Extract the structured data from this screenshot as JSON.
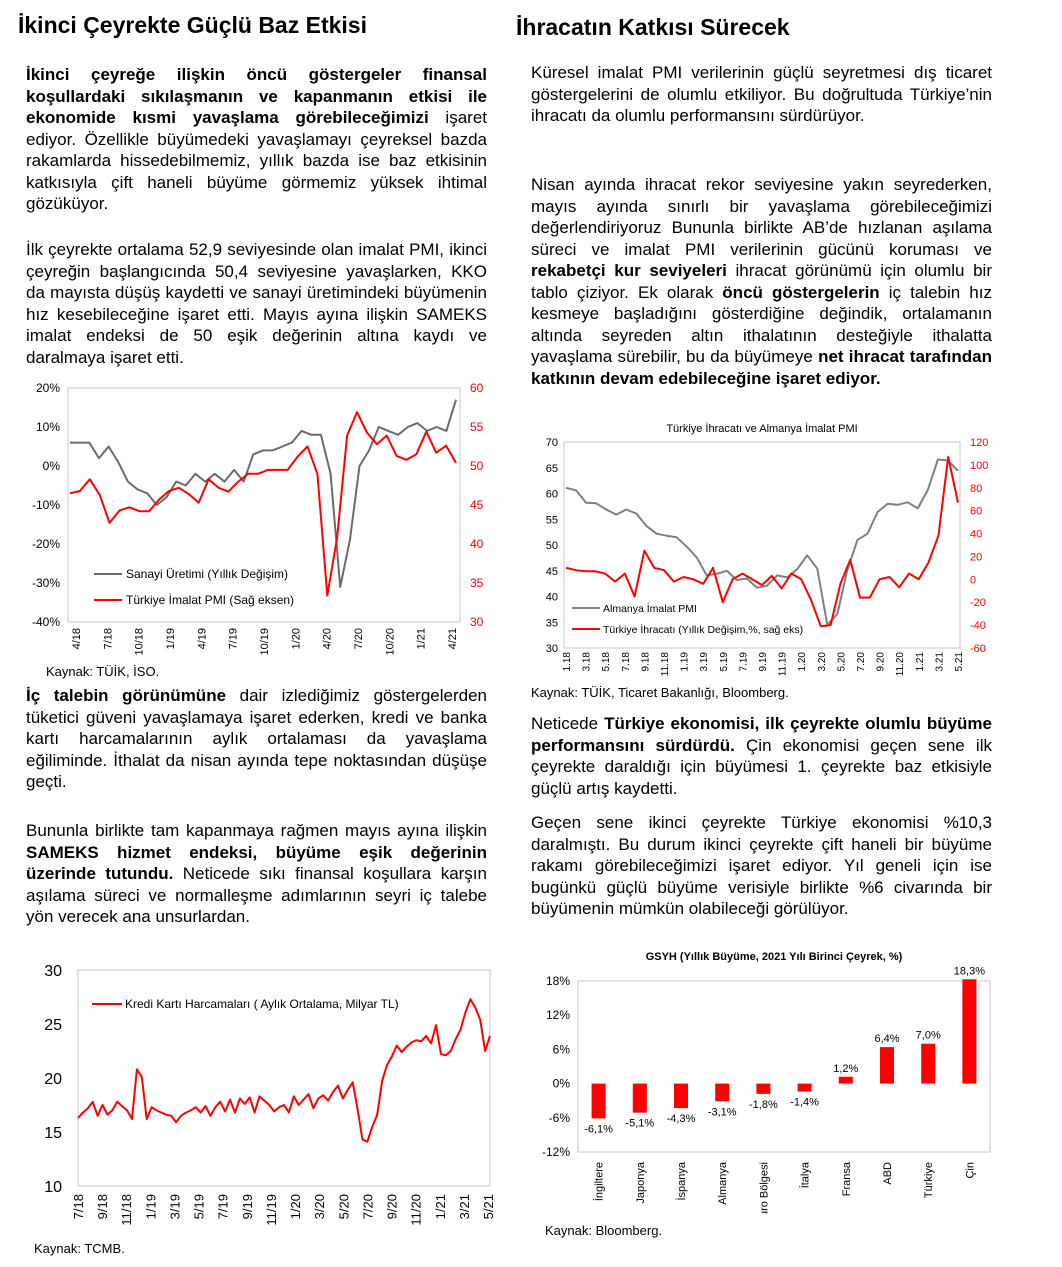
{
  "left": {
    "heading": "İkinci Çeyrekte Güçlü Baz Etkisi",
    "p1": [
      {
        "t": "İkinci çeyreğe ilişkin öncü göstergeler finansal koşullardaki sıkılaşmanın ve kapanmanın etkisi ile ekonomide kısmi yavaşlama görebileceğimizi",
        "b": true
      },
      {
        "t": " işaret ediyor. Özellikle büyümedeki yavaşlamayı çeyreksel bazda rakamlarda hissedebilmemiz, yıllık bazda ise baz etkisinin katkısıyla çift haneli büyüme görmemiz yüksek ihtimal gözüküyor.",
        "b": false
      }
    ],
    "p2": [
      {
        "t": "İlk çeyrekte ortalama 52,9 seviyesinde olan imalat PMI, ikinci çeyreğin başlangıcında 50,4 seviyesine yavaşlarken, KKO da mayısta düşüş kaydetti ve sanayi üretimindeki büyümenin hız kesebileceğine işaret etti. Mayıs ayına ilişkin SAMEKS imalat endeksi de 50 eşik değerinin altına kaydı ve daralmaya işaret etti.",
        "b": false
      }
    ],
    "p3": [
      {
        "t": "İç talebin görünümüne",
        "b": true
      },
      {
        "t": " dair izlediğimiz göstergelerden tüketici güveni yavaşlamaya işaret ederken, kredi ve banka kartı harcamalarının aylık ortalaması da yavaşlama eğiliminde. İthalat da nisan ayında tepe noktasından düşüşe geçti.",
        "b": false
      }
    ],
    "p4": [
      {
        "t": "Bununla birlikte tam kapanmaya rağmen mayıs ayına ilişkin ",
        "b": false
      },
      {
        "t": "SAMEKS hizmet endeksi, büyüme eşik değerinin üzerinde tutundu.",
        "b": true
      },
      {
        "t": " Neticede sıkı finansal koşullara karşın aşılama süreci ve normalleşme adımlarının seyri iç talebe yön verecek ana unsurlardan.",
        "b": false
      }
    ],
    "source1": "Kaynak: TÜİK, İSO.",
    "source2": "Kaynak: TCMB."
  },
  "right": {
    "heading": "İhracatın Katkısı Sürecek",
    "p1": [
      {
        "t": "Küresel imalat PMI verilerinin güçlü seyretmesi dış ticaret göstergelerini de olumlu etkiliyor. Bu doğrultuda Türkiye’nin ihracatı da olumlu performansını sürdürüyor.",
        "b": false
      }
    ],
    "p2": [
      {
        "t": "Nisan ayında ihracat rekor seviyesine yakın seyrederken, mayıs ayında sınırlı bir yavaşlama görebileceğimizi değerlendiriyoruz Bununla birlikte AB’de hızlanan aşılama süreci ve imalat PMI verilerinin gücünü koruması ve ",
        "b": false
      },
      {
        "t": "rekabetçi kur seviyeleri",
        "b": true
      },
      {
        "t": " ihracat görünümü için olumlu bir tablo çiziyor. Ek olarak ",
        "b": false
      },
      {
        "t": "öncü göstergelerin",
        "b": true
      },
      {
        "t": " iç talebin hız kesmeye başladığını gösterdiğine değindik, ortalamanın altında seyreden altın ithalatının desteğiyle ithalatta yavaşlama sürebilir, bu da büyümeye ",
        "b": false
      },
      {
        "t": "net ihracat tarafından katkının devam edebileceğine işaret ediyor.",
        "b": true
      }
    ],
    "p3": [
      {
        "t": "Neticede ",
        "b": false
      },
      {
        "t": "Türkiye ekonomisi, ilk çeyrekte olumlu büyüme performansını sürdürdü.",
        "b": true
      },
      {
        "t": " Çin ekonomisi geçen sene ilk çeyrekte daraldığı için büyümesi 1. çeyrekte baz etkisiyle güçlü artış kaydetti.",
        "b": false
      }
    ],
    "p4": [
      {
        "t": "Geçen sene ikinci çeyrekte Türkiye ekonomisi %10,3 daralmıştı. Bu durum ikinci çeyrekte çift haneli bir büyüme rakamı görebileceğimizi işaret ediyor. Yıl geneli için ise bugünkü güçlü büyüme verisiyle birlikte %6 civarında bir büyümenin mümkün olabileceği görülüyor.",
        "b": false
      }
    ],
    "source1": "Kaynak: TÜİK, Ticaret Bakanlığı, Bloomberg.",
    "source2": "Kaynak: Bloomberg."
  },
  "chart_data": [
    {
      "type": "line",
      "title": "",
      "x_ticks": [
        "4/18",
        "7/18",
        "10/18",
        "1/19",
        "4/19",
        "7/19",
        "10/19",
        "1/20",
        "4/20",
        "7/20",
        "10/20",
        "1/21",
        "4/21"
      ],
      "ylim_left": [
        -40,
        20
      ],
      "yticks_left": [
        "20%",
        "10%",
        "0%",
        "-10%",
        "-20%",
        "-30%",
        "-40%"
      ],
      "ylim_right": [
        30,
        60
      ],
      "yticks_right": [
        "60",
        "55",
        "50",
        "45",
        "40",
        "35",
        "30"
      ],
      "legend_placement": "bottom-left",
      "series": [
        {
          "name": "Sanayi Üretimi (Yıllık Değişim)",
          "axis": "left",
          "color": "#6b6b6b",
          "values": [
            6,
            6,
            6,
            2,
            5,
            1,
            -4,
            -6,
            -7,
            -10,
            -8,
            -4,
            -5,
            -2,
            -4,
            -2,
            -4,
            -1,
            -4,
            3,
            4,
            4,
            5,
            6,
            9,
            8,
            8,
            -2,
            -31,
            -19,
            0,
            4,
            10,
            9,
            8,
            10,
            11,
            9,
            10,
            9,
            17
          ]
        },
        {
          "name": "Türkiye İmalat PMI (Sağ eksen)",
          "axis": "right",
          "color": "#ff0000",
          "values": [
            46.5,
            46.8,
            48.3,
            46.3,
            42.7,
            44.3,
            44.7,
            44.2,
            44.2,
            45.7,
            46.8,
            47.2,
            46.4,
            45.3,
            48.3,
            47.2,
            46.7,
            48.0,
            49.0,
            49.0,
            49.5,
            49.5,
            49.5,
            51.2,
            52.5,
            49.0,
            33.4,
            40.9,
            53.9,
            56.9,
            54.3,
            52.8,
            53.9,
            51.3,
            50.8,
            51.5,
            54.4,
            51.7,
            52.6,
            50.4
          ]
        }
      ]
    },
    {
      "type": "line",
      "title": "Türkiye İhracatı ve Almanya İmalat PMI",
      "x_ticks": [
        "1.18",
        "3.18",
        "5.18",
        "7.18",
        "9.18",
        "11.18",
        "1.19",
        "3.19",
        "5.19",
        "7.19",
        "9.19",
        "11.19",
        "1.20",
        "3.20",
        "5.20",
        "7.20",
        "9.20",
        "11.20",
        "1.21",
        "3.21",
        "5.21"
      ],
      "ylim_left": [
        30,
        70
      ],
      "yticks_left": [
        "70",
        "65",
        "60",
        "55",
        "50",
        "45",
        "40",
        "35",
        "30"
      ],
      "ylim_right": [
        -60,
        120
      ],
      "yticks_right": [
        "120",
        "100",
        "80",
        "60",
        "40",
        "20",
        "0",
        "-20",
        "-40",
        "-60"
      ],
      "legend_placement": "bottom-left",
      "series": [
        {
          "name": "Almanya İmalat PMI",
          "axis": "left",
          "color": "#808080",
          "values": [
            61.1,
            60.6,
            58.2,
            58.1,
            56.9,
            55.9,
            56.9,
            56.1,
            53.7,
            52.2,
            51.8,
            51.5,
            49.7,
            47.6,
            44.1,
            44.4,
            45.0,
            43.2,
            43.5,
            41.7,
            42.1,
            44.1,
            43.7,
            45.3,
            48.0,
            45.4,
            34.5,
            36.6,
            45.2,
            51.0,
            52.2,
            56.4,
            58.0,
            57.8,
            58.3,
            57.1,
            60.7,
            66.6,
            66.4,
            64.4
          ]
        },
        {
          "name": "Türkiye İhracatı (Yıllık Değişim,%, sağ eks)",
          "axis": "right",
          "color": "#ff0000",
          "values": [
            10,
            8,
            7,
            7,
            5,
            -2,
            5,
            -15,
            25,
            10,
            8,
            -2,
            2,
            0,
            -4,
            10,
            -20,
            0,
            5,
            0,
            -5,
            3,
            -8,
            5,
            0,
            -18,
            -41,
            -40,
            -4,
            17,
            -16,
            -16,
            0,
            2,
            -7,
            5,
            0,
            15,
            38,
            107,
            67
          ]
        }
      ]
    },
    {
      "type": "line",
      "title": "",
      "x_ticks": [
        "7/18",
        "9/18",
        "11/18",
        "1/19",
        "3/19",
        "5/19",
        "7/19",
        "9/19",
        "11/19",
        "1/20",
        "3/20",
        "5/20",
        "7/20",
        "9/20",
        "11/20",
        "1/21",
        "3/21",
        "5/21"
      ],
      "ylim": [
        10,
        30
      ],
      "yticks": [
        "30",
        "25",
        "20",
        "15",
        "10"
      ],
      "legend_placement": "top-left",
      "series": [
        {
          "name": "Kredi Kartı Harcamaları ( Aylık Ortalama, Milyar TL)",
          "color": "#ff0000",
          "values": [
            16.3,
            16.8,
            17.2,
            17.8,
            16.5,
            17.5,
            16.6,
            17.0,
            17.8,
            17.4,
            17.0,
            16.2,
            20.8,
            20.1,
            16.2,
            17.3,
            17.0,
            16.8,
            16.6,
            16.5,
            15.9,
            16.5,
            16.8,
            17.0,
            17.3,
            16.8,
            17.4,
            16.5,
            17.3,
            17.8,
            16.9,
            18.0,
            16.8,
            18.1,
            17.6,
            18.2,
            16.8,
            18.3,
            17.9,
            17.5,
            16.9,
            17.3,
            17.5,
            16.8,
            18.3,
            17.5,
            18.0,
            18.5,
            17.2,
            18.1,
            18.4,
            17.9,
            18.7,
            19.3,
            18.1,
            18.9,
            19.6,
            17.1,
            14.3,
            14.1,
            15.5,
            16.6,
            19.7,
            21.2,
            22.0,
            23.0,
            22.4,
            22.9,
            23.3,
            23.5,
            23.4,
            23.9,
            23.2,
            24.9,
            22.2,
            22.1,
            22.5,
            23.6,
            24.5,
            26.1,
            27.3,
            26.5,
            25.4,
            22.5,
            23.9
          ]
        }
      ]
    },
    {
      "type": "bar",
      "title": "GSYH (Yıllık Büyüme, 2021 Yılı Birinci Çeyrek, %)",
      "categories": [
        "İngiltere",
        "Japonya",
        "İspanya",
        "Almanya",
        "Euro Bölgesi",
        "İtalya",
        "Fransa",
        "ABD",
        "Türkiye",
        "Çin"
      ],
      "values": [
        -6.1,
        -5.1,
        -4.3,
        -3.1,
        -1.8,
        -1.4,
        1.2,
        6.4,
        7.0,
        18.3
      ],
      "data_labels": [
        "-6,1%",
        "-5,1%",
        "-4,3%",
        "-3,1%",
        "-1,8%",
        "-1,4%",
        "1,2%",
        "6,4%",
        "7,0%",
        "18,3%"
      ],
      "ylim": [
        -12,
        18
      ],
      "yticks": [
        "18%",
        "12%",
        "6%",
        "0%",
        "-6%",
        "-12%"
      ],
      "color": "#ff0000"
    }
  ]
}
